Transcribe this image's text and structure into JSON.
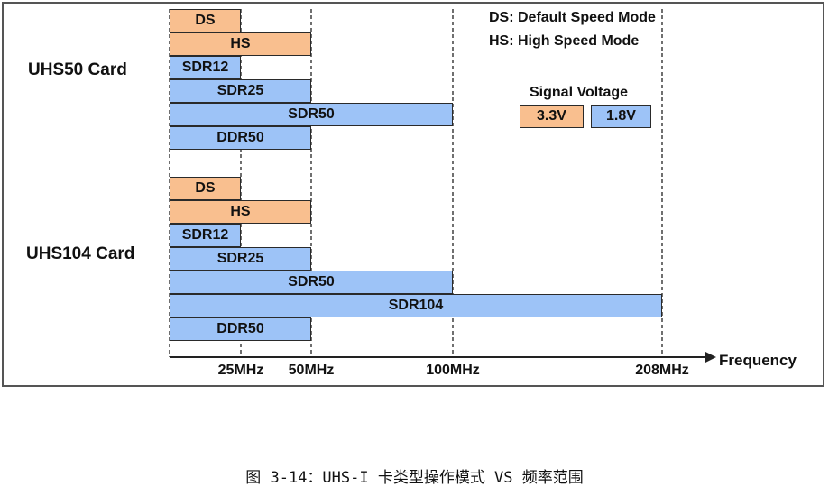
{
  "colors": {
    "voltage_3v3": "#f9bf8f",
    "voltage_1v8": "#9dc3f7",
    "border": "#2a2a2a"
  },
  "legend": {
    "ds_note": "DS: Default Speed Mode",
    "hs_note": "HS: High Speed Mode",
    "signal_voltage_title": "Signal Voltage",
    "voltage_3v3": "3.3V",
    "voltage_1v8": "1.8V"
  },
  "groups": [
    {
      "label": "UHS50 Card",
      "modes": [
        {
          "name": "DS",
          "max_mhz": 25,
          "voltage": "3.3V"
        },
        {
          "name": "HS",
          "max_mhz": 50,
          "voltage": "3.3V"
        },
        {
          "name": "SDR12",
          "max_mhz": 25,
          "voltage": "1.8V"
        },
        {
          "name": "SDR25",
          "max_mhz": 50,
          "voltage": "1.8V"
        },
        {
          "name": "SDR50",
          "max_mhz": 100,
          "voltage": "1.8V"
        },
        {
          "name": "DDR50",
          "max_mhz": 50,
          "voltage": "1.8V"
        }
      ]
    },
    {
      "label": "UHS104 Card",
      "modes": [
        {
          "name": "DS",
          "max_mhz": 25,
          "voltage": "3.3V"
        },
        {
          "name": "HS",
          "max_mhz": 50,
          "voltage": "3.3V"
        },
        {
          "name": "SDR12",
          "max_mhz": 25,
          "voltage": "1.8V"
        },
        {
          "name": "SDR25",
          "max_mhz": 50,
          "voltage": "1.8V"
        },
        {
          "name": "SDR50",
          "max_mhz": 100,
          "voltage": "1.8V"
        },
        {
          "name": "SDR104",
          "max_mhz": 208,
          "voltage": "1.8V"
        },
        {
          "name": "DDR50",
          "max_mhz": 50,
          "voltage": "1.8V"
        }
      ]
    }
  ],
  "axis": {
    "label": "Frequency",
    "ticks": [
      {
        "mhz": 25,
        "label": "25MHz"
      },
      {
        "mhz": 50,
        "label": "50MHz"
      },
      {
        "mhz": 100,
        "label": "100MHz"
      },
      {
        "mhz": 208,
        "label": "208MHz"
      }
    ]
  },
  "caption": "图 3-14：UHS-I 卡类型操作模式 VS 频率范围"
}
